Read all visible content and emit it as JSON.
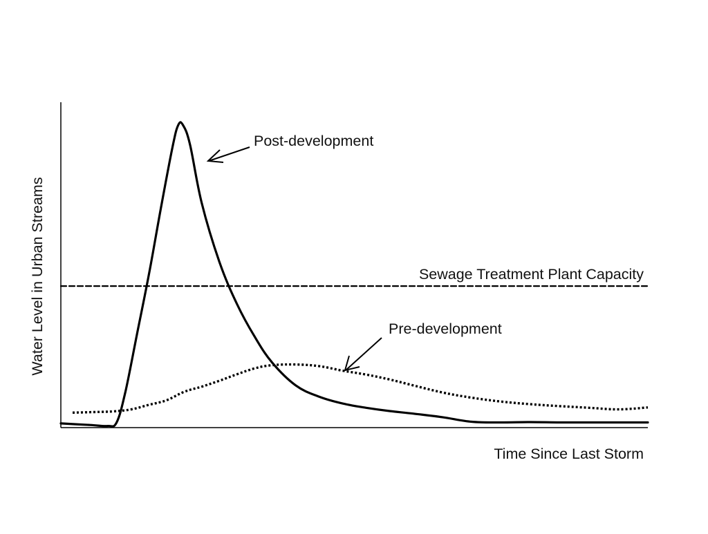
{
  "chart_data": {
    "type": "line",
    "title": "",
    "xlabel": "Time Since Last Storm",
    "ylabel": "Water Level in Urban Streams",
    "xlim": [
      0,
      100
    ],
    "ylim": [
      0,
      100
    ],
    "grid": false,
    "legend": "none",
    "series": [
      {
        "name": "Post-development",
        "style": "solid",
        "color": "#000000",
        "x": [
          0,
          5,
          8,
          9.5,
          11,
          13,
          15,
          17,
          19,
          20,
          20.8,
          22,
          24,
          27,
          30,
          33,
          36,
          40,
          44,
          48,
          52,
          56,
          60,
          65,
          70,
          75,
          80,
          85,
          90,
          95,
          100
        ],
        "y": [
          1.3,
          0.8,
          0.5,
          1.6,
          11,
          29,
          47,
          67,
          86,
          93,
          93,
          87,
          69,
          51,
          38,
          28,
          20,
          13,
          9.5,
          7.4,
          6.1,
          5.1,
          4.3,
          3.2,
          1.8,
          1.6,
          1.7,
          1.6,
          1.6,
          1.6,
          1.6
        ]
      },
      {
        "name": "Pre-development",
        "style": "dotted",
        "color": "#000000",
        "x": [
          2,
          6,
          9,
          12,
          15,
          18,
          21,
          24,
          27,
          30,
          33,
          36,
          40,
          44,
          48,
          52,
          56,
          60,
          65,
          70,
          75,
          80,
          85,
          90,
          95,
          100
        ],
        "y": [
          4.6,
          4.8,
          5,
          5.6,
          7,
          8.4,
          11,
          12.6,
          14.4,
          16.4,
          18.2,
          19.2,
          19.4,
          18.9,
          17.5,
          16.3,
          14.8,
          13,
          10.8,
          9.2,
          8,
          7.2,
          6.6,
          6.1,
          5.6,
          6.2
        ]
      },
      {
        "name": "Sewage Treatment Plant Capacity",
        "style": "dashed",
        "color": "#000000",
        "x": [
          0,
          100
        ],
        "y": [
          43.5,
          43.5
        ]
      }
    ],
    "annotations": [
      {
        "text": "Post-development",
        "target_series": 0,
        "target_x": 24.5,
        "target_y": 81
      },
      {
        "text": "Sewage Treatment Plant Capacity",
        "target_series": 2
      },
      {
        "text": "Pre-development",
        "target_series": 1,
        "target_x": 48.5,
        "target_y": 17.8
      }
    ]
  }
}
